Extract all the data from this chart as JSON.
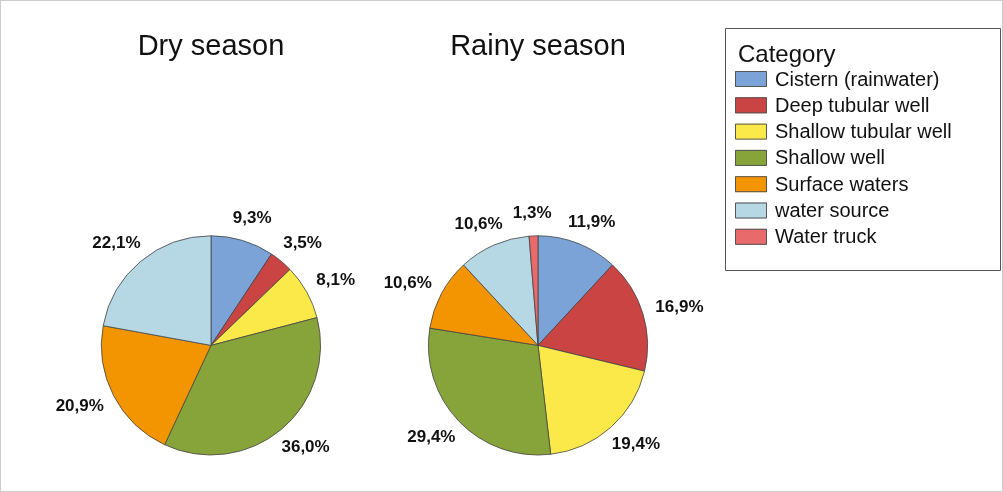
{
  "chart_data": {
    "type": "pie",
    "categories": [
      "Cistern (rainwater)",
      "Deep tubular well",
      "Shallow tubular well",
      "Shallow well",
      "Surface waters",
      "water source",
      "Water truck"
    ],
    "colors": [
      "#7ba3d8",
      "#c94443",
      "#fbe94a",
      "#86a43a",
      "#f39500",
      "#b6d7e4",
      "#e86a6a"
    ],
    "series": [
      {
        "name": "Dry season",
        "values": [
          9.3,
          3.5,
          8.1,
          36.0,
          20.9,
          22.1,
          0
        ],
        "value_labels": [
          "9,3%",
          "3,5%",
          "8,1%",
          "36,0%",
          "20,9%",
          "22,1%",
          null
        ]
      },
      {
        "name": "Rainy season",
        "values": [
          11.9,
          16.9,
          19.4,
          29.4,
          10.6,
          10.6,
          1.3
        ],
        "value_labels": [
          "11,9%",
          "16,9%",
          "19,4%",
          "29,4%",
          "10,6%",
          "10,6%",
          "1,3%"
        ]
      }
    ],
    "legend": "top right",
    "legend_title": "Category"
  }
}
